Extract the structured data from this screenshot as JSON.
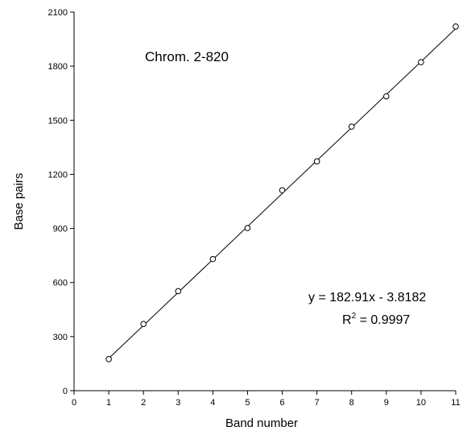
{
  "chart_data": {
    "type": "scatter",
    "annotation": "Chrom. 2-820",
    "xlabel": "Band number",
    "ylabel": "Base pairs",
    "xlim": [
      0,
      11
    ],
    "ylim": [
      0,
      2100
    ],
    "x_ticks": [
      "0",
      "1",
      "2",
      "3",
      "4",
      "5",
      "6",
      "7",
      "8",
      "9",
      "10",
      "11"
    ],
    "y_ticks": [
      "0",
      "300",
      "600",
      "900",
      "1200",
      "1500",
      "1800",
      "2100"
    ],
    "grid": false,
    "legend": "none",
    "series": [
      {
        "marker": "open-circle",
        "x": [
          1,
          2,
          3,
          4,
          5,
          6,
          7,
          8,
          9,
          10,
          11
        ],
        "y": [
          175,
          370,
          552,
          730,
          902,
          1112,
          1272,
          1465,
          1633,
          1822,
          2020
        ]
      }
    ],
    "trendline": {
      "type": "linear",
      "slope": 182.91,
      "intercept": -3.8182,
      "x_range": [
        1,
        11
      ]
    },
    "equation": {
      "line1": "y = 182.91x - 3.8182",
      "r2_prefix": "R",
      "r2_sup": "2",
      "r2_suffix": " = 0.9997"
    }
  }
}
